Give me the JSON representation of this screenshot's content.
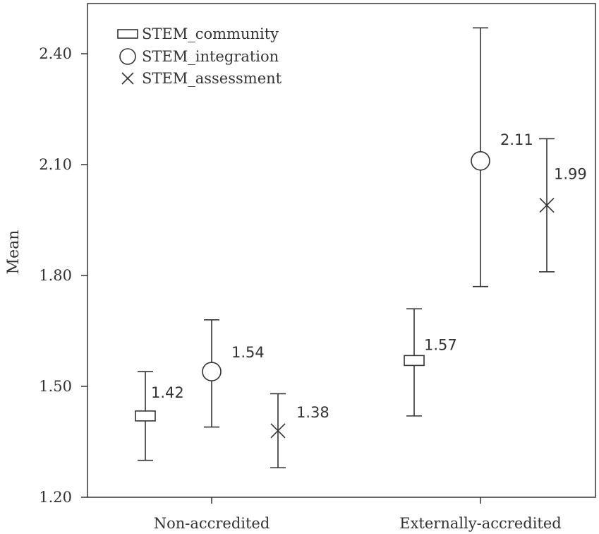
{
  "chart_data": {
    "type": "errorbar",
    "ylabel": "Mean",
    "xlabel": "",
    "ylim": [
      1.2,
      2.65
    ],
    "y_ticks": [
      "1.20",
      "1.50",
      "1.80",
      "2.10",
      "2.40"
    ],
    "categories": [
      "Non-accredited",
      "Externally-accredited"
    ],
    "grid": false,
    "legend_position": "top-left",
    "colors": {
      "marks": "#333333",
      "axis": "#333333"
    },
    "series": [
      {
        "name": "STEM_community",
        "marker": "square",
        "values": [
          1.42,
          1.57
        ],
        "lower": [
          1.3,
          1.42
        ],
        "upper": [
          1.54,
          1.71
        ],
        "labels": [
          "1.42",
          "1.57"
        ]
      },
      {
        "name": "STEM_integration",
        "marker": "circle",
        "values": [
          1.54,
          2.11
        ],
        "lower": [
          1.39,
          1.77
        ],
        "upper": [
          1.68,
          2.47
        ],
        "labels": [
          "1.54",
          "2.11"
        ]
      },
      {
        "name": "STEM_assessment",
        "marker": "x",
        "values": [
          1.38,
          1.99
        ],
        "lower": [
          1.28,
          1.81
        ],
        "upper": [
          1.48,
          2.17
        ],
        "labels": [
          "1.38",
          "1.99"
        ]
      }
    ]
  }
}
